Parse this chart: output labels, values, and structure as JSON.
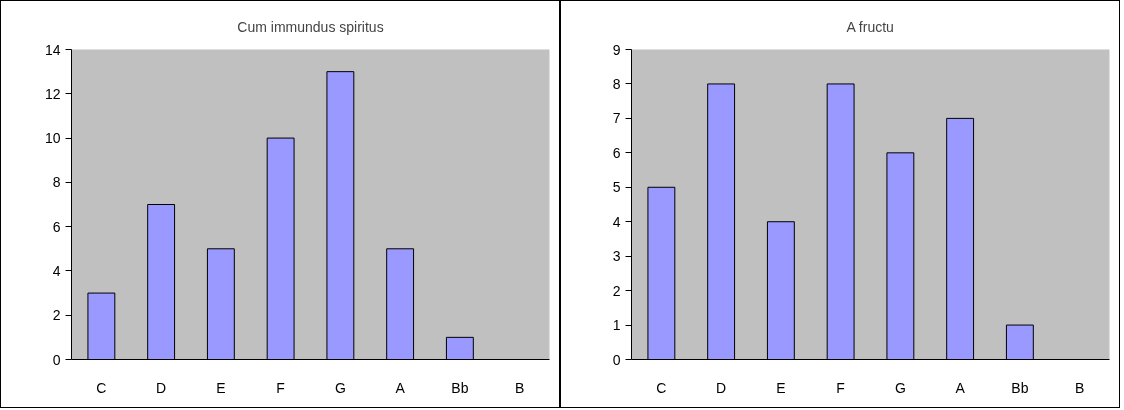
{
  "chart_data": [
    {
      "type": "bar",
      "title": "Cum immundus spiritus",
      "categories": [
        "C",
        "D",
        "E",
        "F",
        "G",
        "A",
        "Bb",
        "B"
      ],
      "values": [
        3,
        7,
        5,
        10,
        13,
        5,
        1,
        0
      ],
      "color": "#9999ff",
      "ylim": [
        0,
        14
      ],
      "yticks": [
        0,
        2,
        4,
        6,
        8,
        10,
        12,
        14
      ],
      "grid": false
    },
    {
      "type": "bar",
      "title": "A fructu",
      "categories": [
        "C",
        "D",
        "E",
        "F",
        "G",
        "A",
        "Bb",
        "B"
      ],
      "values": [
        5,
        8,
        4,
        8,
        6,
        7,
        1,
        0
      ],
      "color": "#9999ff",
      "ylim": [
        0,
        9
      ],
      "yticks": [
        0,
        1,
        2,
        3,
        4,
        5,
        6,
        7,
        8,
        9
      ],
      "grid": false
    }
  ]
}
